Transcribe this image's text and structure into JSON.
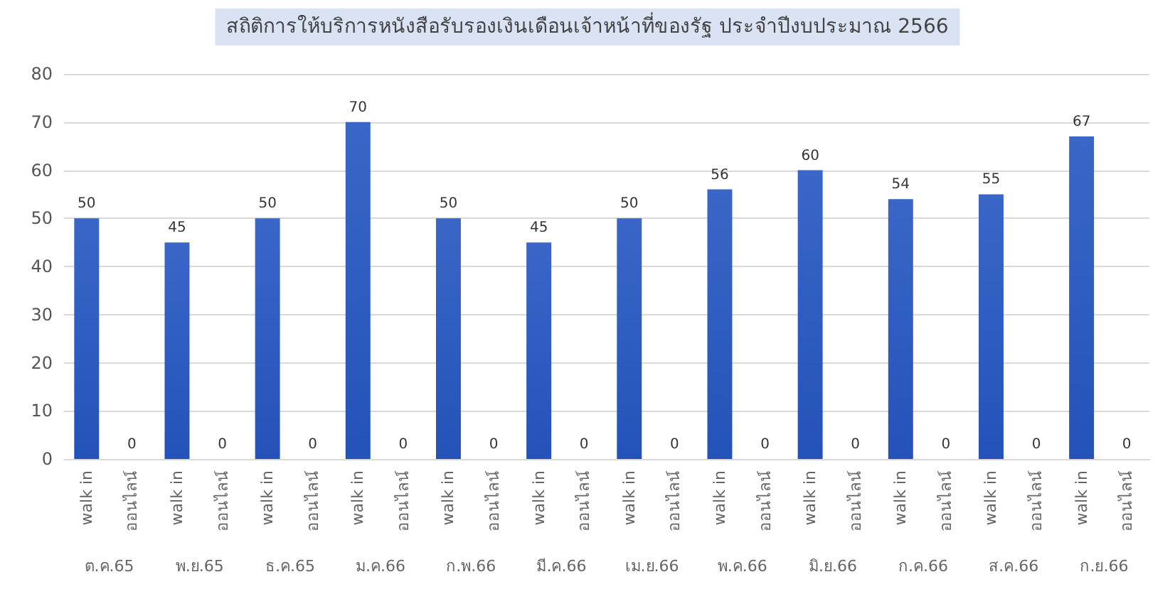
{
  "chart_data": {
    "type": "bar",
    "title": "สถิติการให้บริการหนังสือรับรองเงินเดือนเจ้าหน้าที่ของรัฐ ประจำปีงบประมาณ 2566",
    "categories": [
      "walk in",
      "ออนไลน์",
      "walk in",
      "ออนไลน์",
      "walk in",
      "ออนไลน์",
      "walk in",
      "ออนไลน์",
      "walk in",
      "ออนไลน์",
      "walk in",
      "ออนไลน์",
      "walk in",
      "ออนไลน์",
      "walk in",
      "ออนไลน์",
      "walk in",
      "ออนไลน์",
      "walk in",
      "ออนไลน์",
      "walk in",
      "ออนไลน์",
      "walk in",
      "ออนไลน์"
    ],
    "values": [
      50,
      0,
      45,
      0,
      50,
      0,
      70,
      0,
      50,
      0,
      45,
      0,
      50,
      0,
      56,
      0,
      60,
      0,
      54,
      0,
      55,
      0,
      67,
      0
    ],
    "color": "#3a66c8",
    "annotations": [
      "ต.ค.65",
      "พ.ย.65",
      "ธ.ค.65",
      "ม.ค.66",
      "ก.พ.66",
      "มี.ค.66",
      "เม.ย.66",
      "พ.ค.66",
      "มิ.ย.66",
      "ก.ค.66",
      "ส.ค.66",
      "ก.ย.66"
    ],
    "ylim": [
      0,
      80
    ],
    "yticks": [
      0,
      10,
      20,
      30,
      40,
      50,
      60,
      70,
      80
    ],
    "grid": "y",
    "data_labels": true
  }
}
